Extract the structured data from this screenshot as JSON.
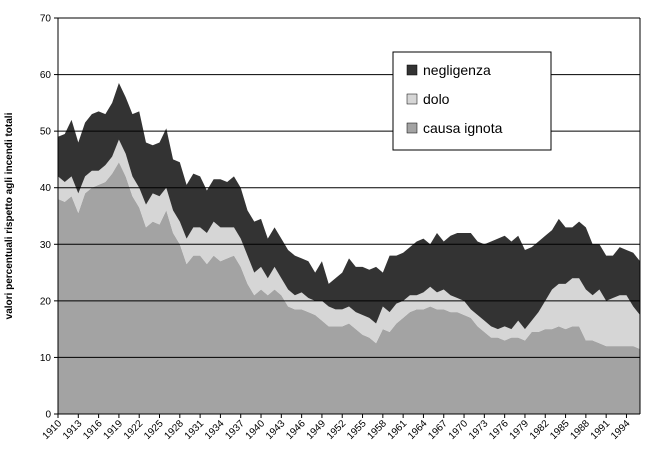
{
  "chart_data": {
    "type": "stacked_area",
    "y_label": "valori percentuali rispetto agli incendi totali",
    "x": [
      1910,
      1911,
      1912,
      1913,
      1914,
      1915,
      1916,
      1917,
      1918,
      1919,
      1920,
      1921,
      1922,
      1923,
      1924,
      1925,
      1926,
      1927,
      1928,
      1929,
      1930,
      1931,
      1932,
      1933,
      1934,
      1935,
      1936,
      1937,
      1938,
      1939,
      1940,
      1941,
      1942,
      1943,
      1944,
      1945,
      1946,
      1947,
      1948,
      1949,
      1950,
      1951,
      1952,
      1953,
      1954,
      1955,
      1956,
      1957,
      1958,
      1959,
      1960,
      1961,
      1962,
      1963,
      1964,
      1965,
      1966,
      1967,
      1968,
      1969,
      1970,
      1971,
      1972,
      1973,
      1974,
      1975,
      1976,
      1977,
      1978,
      1979,
      1980,
      1981,
      1982,
      1983,
      1984,
      1985,
      1986,
      1987,
      1988,
      1989,
      1990,
      1991,
      1992,
      1993,
      1994,
      1995,
      1996
    ],
    "series": [
      {
        "name": "causa ignota",
        "color": "#a3a3a3",
        "values": [
          38,
          37.5,
          38.5,
          35.5,
          39,
          40,
          40.5,
          41,
          42.5,
          44.5,
          42,
          38.5,
          36.5,
          33,
          34,
          33.5,
          36,
          32,
          30,
          26.5,
          28,
          28,
          26.5,
          28,
          27,
          27.5,
          28,
          26,
          23,
          21,
          22,
          21,
          22,
          21,
          19,
          18.5,
          18.5,
          18,
          17.5,
          16.5,
          15.5,
          15.5,
          15.5,
          16,
          15,
          14,
          13.5,
          12.5,
          15,
          14.5,
          16,
          17,
          18,
          18.5,
          18.5,
          19,
          18.5,
          18.5,
          18,
          18,
          17.5,
          17,
          15.5,
          14.5,
          13.5,
          13.5,
          13,
          13.5,
          13.5,
          13,
          14.5,
          14.5,
          15,
          15,
          15.5,
          15,
          15.5,
          15.5,
          13,
          13,
          12.5,
          12,
          12,
          12,
          12,
          12,
          11.5
        ]
      },
      {
        "name": "dolo",
        "color": "#d6d6d6",
        "values": [
          4,
          3.5,
          3.5,
          3.5,
          3,
          3,
          2.5,
          3,
          3,
          4,
          4,
          3.5,
          3.5,
          4,
          5,
          5,
          4,
          4,
          4,
          4.5,
          5,
          5,
          5.5,
          6,
          6,
          5.5,
          5,
          5,
          5,
          4,
          4,
          3,
          4,
          3,
          3,
          2.5,
          3,
          2.5,
          2.5,
          3.5,
          3.5,
          3,
          3,
          3,
          3,
          3.5,
          3.5,
          3.5,
          4,
          3.5,
          3.5,
          3,
          3,
          2.5,
          3,
          3.5,
          3,
          3.5,
          3,
          2.5,
          2.5,
          1.5,
          2,
          2,
          2,
          1.5,
          2.5,
          1.5,
          3,
          2,
          2,
          3.5,
          5,
          7,
          7.5,
          8,
          8.5,
          8.5,
          9,
          8,
          9.5,
          8,
          8.5,
          9,
          9,
          7,
          6
        ]
      },
      {
        "name": "negligenza",
        "color": "#333333",
        "values": [
          7,
          8.5,
          10,
          9,
          9.5,
          10,
          10.5,
          9,
          9.5,
          10,
          10,
          11,
          13.5,
          11,
          8.5,
          9.5,
          10.5,
          9,
          10.5,
          9.5,
          9.5,
          9,
          7.5,
          7.5,
          8.5,
          8,
          9,
          9,
          8,
          9,
          8.5,
          7,
          7,
          7,
          7,
          7,
          6,
          6.5,
          5,
          7,
          4,
          5.5,
          6.5,
          8.5,
          8,
          8.5,
          8.5,
          10,
          6,
          10,
          8.5,
          8.5,
          8.5,
          9.5,
          9.5,
          7.5,
          10.5,
          8.5,
          10.5,
          11.5,
          12,
          13.5,
          13,
          13.5,
          15,
          16,
          16,
          15.5,
          15,
          14,
          13,
          12.5,
          11.5,
          10.5,
          11.5,
          10,
          9,
          10,
          11,
          9,
          8,
          8,
          7.5,
          8.5,
          8,
          9.5,
          9.5
        ]
      }
    ],
    "xlim": [
      1910,
      1996
    ],
    "xticks": [
      1910,
      1913,
      1916,
      1919,
      1922,
      1925,
      1928,
      1931,
      1934,
      1937,
      1940,
      1943,
      1946,
      1949,
      1952,
      1955,
      1958,
      1961,
      1964,
      1967,
      1970,
      1973,
      1976,
      1979,
      1982,
      1985,
      1988,
      1991,
      1994
    ],
    "ylim": [
      0,
      70
    ],
    "yticks": [
      0,
      10,
      20,
      30,
      40,
      50,
      60,
      70
    ],
    "grid": true,
    "legend": "upper right"
  }
}
